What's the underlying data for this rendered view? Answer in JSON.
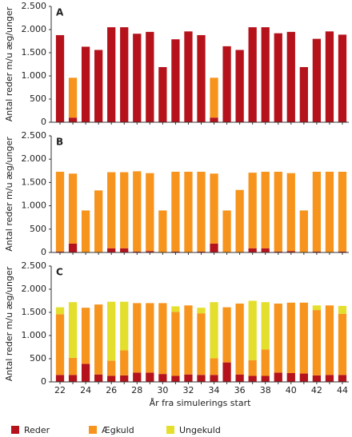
{
  "chart_data": [
    {
      "type": "bar",
      "stacked": true,
      "panel": "A",
      "ylabel": "Antal reder m/u æg/unger",
      "ylim": [
        0,
        2500
      ],
      "yticks": [
        0,
        500,
        {
          "value": 1000,
          "label": "1.000"
        },
        {
          "value": 1500,
          "label": "1.500"
        },
        {
          "value": 2000,
          "label": "2.000"
        },
        {
          "value": 2500,
          "label": "2.500"
        }
      ],
      "series": [
        {
          "name": "Reder",
          "color": "#b5121b",
          "values": [
            1880,
            100,
            1630,
            1560,
            2050,
            2050,
            1910,
            1950,
            1190,
            1790,
            1960,
            1880,
            100,
            1640,
            1560,
            2050,
            2050,
            1920,
            1950,
            1190,
            1800,
            1960,
            1890
          ]
        },
        {
          "name": "Ægkuld",
          "color": "#f7941d",
          "values": [
            0,
            860,
            0,
            0,
            0,
            0,
            0,
            0,
            0,
            0,
            0,
            0,
            860,
            0,
            0,
            0,
            0,
            0,
            0,
            0,
            0,
            0,
            0
          ]
        }
      ]
    },
    {
      "type": "bar",
      "stacked": true,
      "panel": "B",
      "ylabel": "Antal reder m/u æg/unger",
      "ylim": [
        0,
        2500
      ],
      "yticks": [
        0,
        500,
        {
          "value": 1000,
          "label": "1.000"
        },
        {
          "value": 1500,
          "label": "1.500"
        },
        {
          "value": 2000,
          "label": "2.000"
        },
        {
          "value": 2500,
          "label": "2.500"
        }
      ],
      "series": [
        {
          "name": "Reder",
          "color": "#b5121b",
          "values": [
            20,
            190,
            0,
            0,
            90,
            90,
            20,
            30,
            0,
            20,
            0,
            20,
            190,
            0,
            0,
            90,
            90,
            20,
            30,
            0,
            20,
            0,
            20
          ]
        },
        {
          "name": "Ægkuld",
          "color": "#f7941d",
          "values": [
            1710,
            1500,
            900,
            1330,
            1630,
            1630,
            1720,
            1670,
            900,
            1710,
            1730,
            1710,
            1500,
            900,
            1340,
            1620,
            1640,
            1710,
            1670,
            900,
            1710,
            1730,
            1710
          ]
        }
      ]
    },
    {
      "type": "bar",
      "stacked": true,
      "panel": "C",
      "ylabel": "Antal reder m/u æg/unger",
      "xlabel": "År fra simulerings start",
      "categories": [
        "22",
        null,
        "24",
        null,
        "26",
        null,
        "28",
        null,
        "30",
        null,
        "32",
        null,
        "34",
        null,
        "36",
        null,
        "38",
        null,
        "40",
        null,
        "42",
        null,
        "44"
      ],
      "ylim": [
        0,
        2500
      ],
      "yticks": [
        0,
        500,
        {
          "value": 1000,
          "label": "1.000"
        },
        {
          "value": 1500,
          "label": "1.500"
        },
        {
          "value": 2000,
          "label": "2.000"
        },
        {
          "value": 2500,
          "label": "2.500"
        }
      ],
      "series": [
        {
          "name": "Reder",
          "color": "#b5121b",
          "values": [
            150,
            150,
            390,
            160,
            130,
            140,
            200,
            200,
            170,
            130,
            160,
            150,
            150,
            420,
            160,
            130,
            130,
            200,
            190,
            180,
            140,
            150,
            150
          ]
        },
        {
          "name": "Ægkuld",
          "color": "#f7941d",
          "values": [
            1310,
            370,
            1210,
            1510,
            330,
            540,
            1500,
            1500,
            1530,
            1380,
            1490,
            1330,
            360,
            1190,
            1530,
            340,
            570,
            1490,
            1520,
            1530,
            1410,
            1500,
            1320
          ]
        },
        {
          "name": "Ungekuld",
          "color": "#e3df2c",
          "values": [
            150,
            1200,
            0,
            0,
            1270,
            1050,
            0,
            0,
            0,
            120,
            0,
            120,
            1210,
            0,
            0,
            1280,
            1020,
            0,
            0,
            0,
            100,
            0,
            170
          ]
        }
      ]
    }
  ]
}
